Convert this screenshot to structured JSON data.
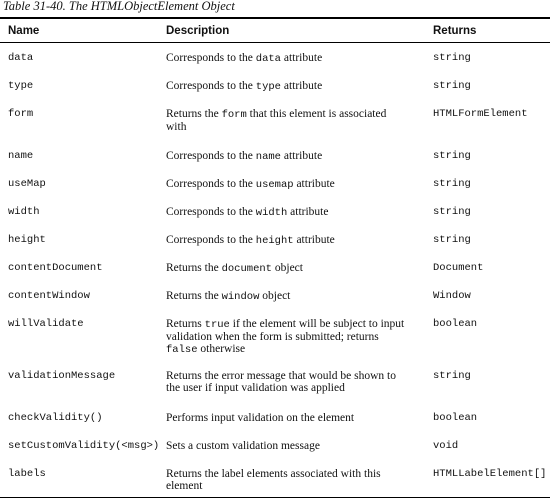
{
  "caption": "Table 31-40. The HTMLObjectElement Object",
  "columns": {
    "name": "Name",
    "description": "Description",
    "returns": "Returns"
  },
  "rows": [
    {
      "name": "data",
      "desc": [
        "Corresponds to the ",
        {
          "code": "data"
        },
        " attribute"
      ],
      "returns": "string"
    },
    {
      "name": "type",
      "desc": [
        "Corresponds to the ",
        {
          "code": "type"
        },
        " attribute"
      ],
      "returns": "string"
    },
    {
      "name": "form",
      "desc": [
        "Returns the ",
        {
          "code": "form"
        },
        " that this element is associated with"
      ],
      "returns": "HTMLFormElement"
    },
    {
      "name": "name",
      "desc": [
        "Corresponds to the ",
        {
          "code": "name"
        },
        " attribute"
      ],
      "returns": "string"
    },
    {
      "name": "useMap",
      "desc": [
        "Corresponds to the ",
        {
          "code": "usemap"
        },
        " attribute"
      ],
      "returns": "string"
    },
    {
      "name": "width",
      "desc": [
        "Corresponds to the ",
        {
          "code": "width"
        },
        " attribute"
      ],
      "returns": "string"
    },
    {
      "name": "height",
      "desc": [
        "Corresponds to the ",
        {
          "code": "height"
        },
        " attribute"
      ],
      "returns": "string"
    },
    {
      "name": "contentDocument",
      "desc": [
        "Returns the ",
        {
          "code": "document"
        },
        " object"
      ],
      "returns": "Document"
    },
    {
      "name": "contentWindow",
      "desc": [
        "Returns the ",
        {
          "code": "window"
        },
        " object"
      ],
      "returns": "Window"
    },
    {
      "name": "willValidate",
      "desc": [
        "Returns ",
        {
          "code": "true"
        },
        " if the element will be subject to input validation when the form is submitted; returns ",
        {
          "code": "false"
        },
        " otherwise"
      ],
      "returns": "boolean"
    },
    {
      "name": "validationMessage",
      "desc": [
        "Returns the error message that would be shown to the user if input validation was applied"
      ],
      "returns": "string"
    },
    {
      "name": "checkValidity()",
      "desc": [
        "Performs input validation on the element"
      ],
      "returns": "boolean"
    },
    {
      "name": "setCustomValidity(<msg>)",
      "desc": [
        "Sets a custom validation message"
      ],
      "returns": "void"
    },
    {
      "name": "labels",
      "desc": [
        "Returns the label elements associated with this element"
      ],
      "returns": "HTMLLabelElement[]"
    }
  ]
}
